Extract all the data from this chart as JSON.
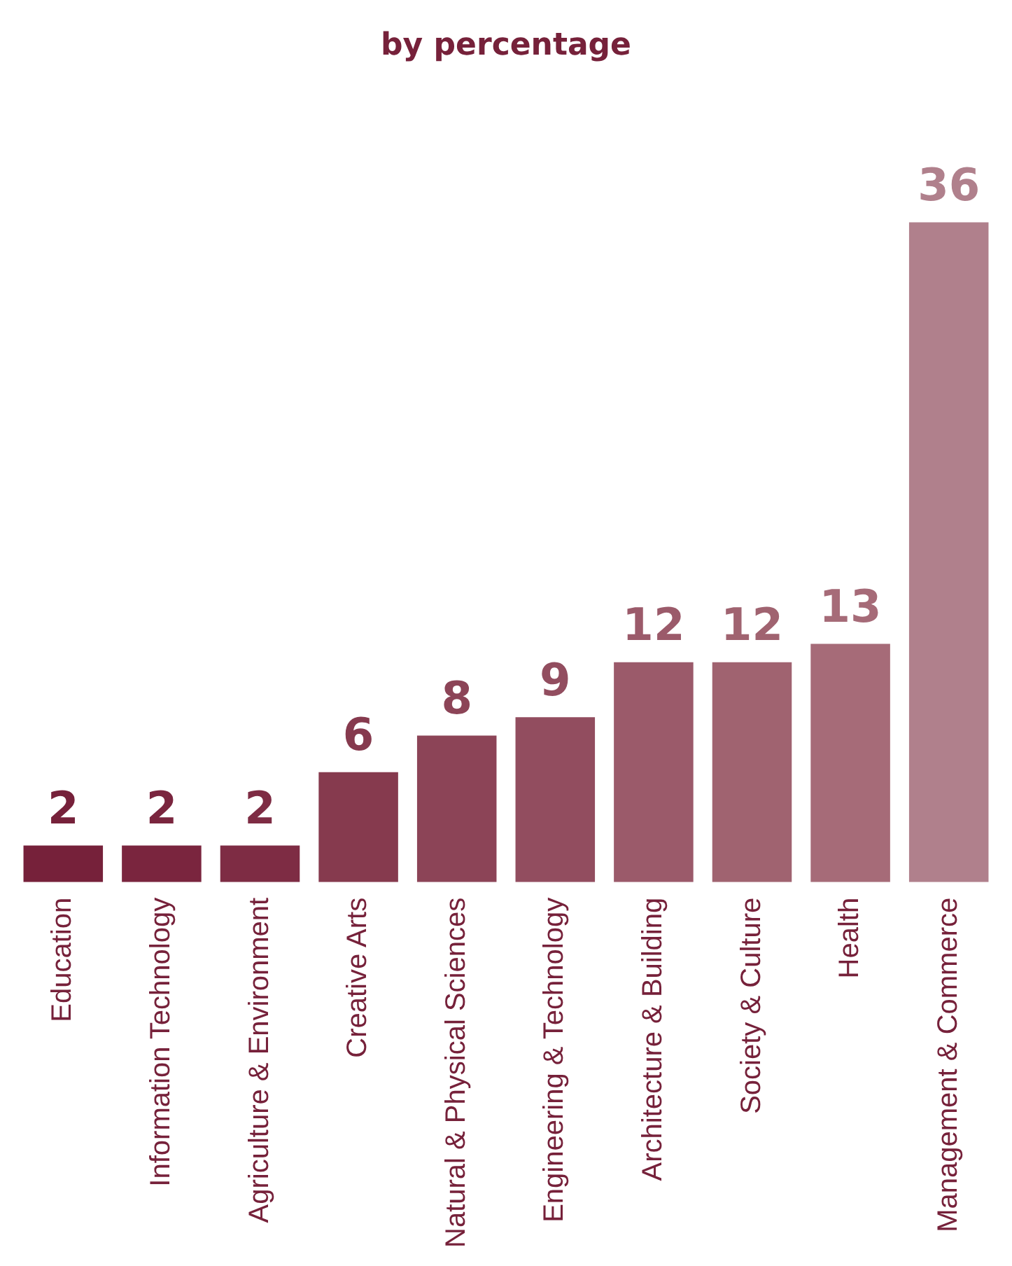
{
  "chart_data": {
    "type": "bar",
    "title": "by percentage",
    "categories": [
      "Education",
      "Information Technology",
      "Agriculture & Environment",
      "Creative Arts",
      "Natural & Physical Sciences",
      "Engineering & Technology",
      "Architecture & Building",
      "Society & Culture",
      "Health",
      "Management & Commerce"
    ],
    "values": [
      2,
      2,
      2,
      6,
      8,
      9,
      12,
      12,
      13,
      36
    ],
    "colors": [
      "#76213a",
      "#7a253e",
      "#7e2c44",
      "#863a4e",
      "#8c4457",
      "#924d5f",
      "#9b5a6a",
      "#a06370",
      "#a66b78",
      "#b0808c"
    ],
    "data_labels": true,
    "grid": false,
    "legend": false,
    "tick_labels": "x"
  }
}
